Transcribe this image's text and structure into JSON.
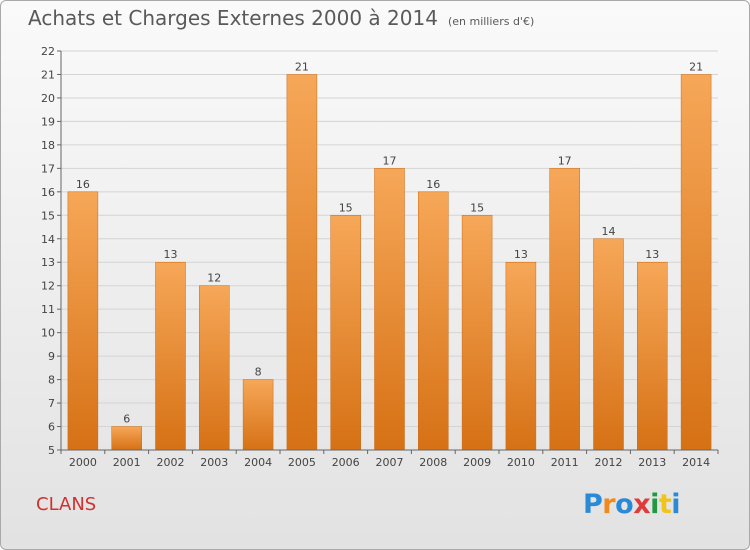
{
  "title": "Achats et Charges Externes 2000 à 2014",
  "subtitle": "(en milliers d'€)",
  "commune": "CLANS",
  "logo": {
    "text": "Proxiti",
    "colors": [
      "#2b8ad8",
      "#f08a1c",
      "#2b8ad8",
      "#e03a3a",
      "#1f9a3f",
      "#f0c419",
      "#2b8ad8"
    ]
  },
  "colors": {
    "bar_top": "#f6a758",
    "bar_bottom": "#d67115",
    "title": "#5a5a5a",
    "commune": "#d2312f"
  },
  "chart_data": {
    "type": "bar",
    "categories": [
      "2000",
      "2001",
      "2002",
      "2003",
      "2004",
      "2005",
      "2006",
      "2007",
      "2008",
      "2009",
      "2010",
      "2011",
      "2012",
      "2013",
      "2014"
    ],
    "values": [
      16,
      6,
      13,
      12,
      8,
      21,
      15,
      17,
      16,
      15,
      13,
      17,
      14,
      13,
      21
    ],
    "title": "Achats et Charges Externes 2000 à 2014",
    "xlabel": "",
    "ylabel": "",
    "ylim": [
      5,
      22
    ],
    "yticks": [
      5,
      6,
      7,
      8,
      9,
      10,
      11,
      12,
      13,
      14,
      15,
      16,
      17,
      18,
      19,
      20,
      21,
      22
    ],
    "grid": true,
    "legend": false
  }
}
